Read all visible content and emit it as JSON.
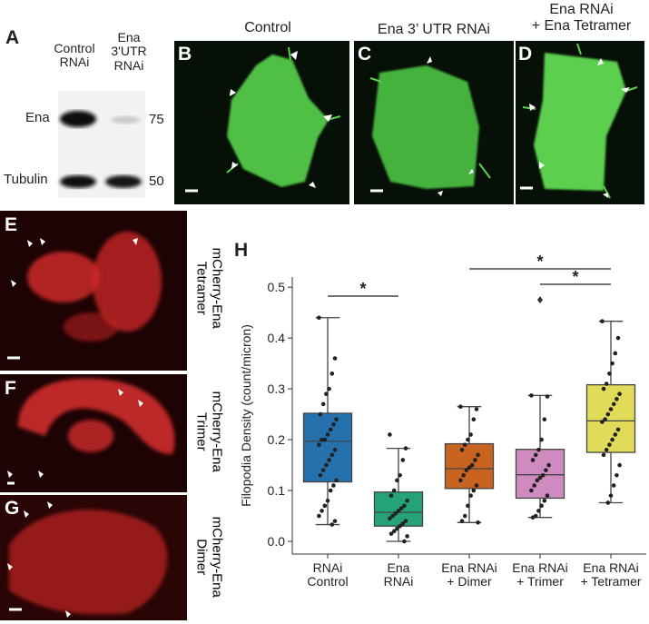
{
  "blot": {
    "label": "A",
    "lanes": [
      "Control\nRNAi",
      "Ena\n3'UTR\nRNAi"
    ],
    "rows": [
      {
        "name": "Ena",
        "kda": 75
      },
      {
        "name": "Tubulin",
        "kda": 50
      }
    ]
  },
  "images": [
    {
      "label": "B",
      "title": "Control"
    },
    {
      "label": "C",
      "title": "Ena 3’ UTR RNAi"
    },
    {
      "label": "D",
      "title": "Ena RNAi\n+ Ena Tetramer"
    },
    {
      "label": "E",
      "caption": "mCherry-Ena\nTetramer"
    },
    {
      "label": "F",
      "caption": "mCherry-Ena\nTrimer"
    },
    {
      "label": "G",
      "caption": "mCherry-Ena\nDimer"
    }
  ],
  "chart_data": {
    "type": "box",
    "label": "H",
    "y_label": "Filopodia Density (count/micron)",
    "categories": [
      "RNAi\nControl",
      "Ena\nRNAi",
      "Ena RNAi\n+ Dimer",
      "Ena RNAi\n+ Trimer",
      "Ena RNAi\n+ Tetramer"
    ],
    "boxes": [
      {
        "color": "#2471ad",
        "whisker_low": 0.033,
        "q1": 0.117,
        "median": 0.197,
        "q3": 0.252,
        "whisker_high": 0.44,
        "outliers": [],
        "points": [
          0.44,
          0.36,
          0.33,
          0.3,
          0.29,
          0.27,
          0.25,
          0.24,
          0.23,
          0.22,
          0.21,
          0.2,
          0.2,
          0.19,
          0.18,
          0.17,
          0.16,
          0.15,
          0.14,
          0.13,
          0.12,
          0.11,
          0.1,
          0.08,
          0.07,
          0.06,
          0.05,
          0.04,
          0.033
        ]
      },
      {
        "color": "#25a27a",
        "whisker_low": 0.0,
        "q1": 0.03,
        "median": 0.057,
        "q3": 0.097,
        "whisker_high": 0.183,
        "outliers": [],
        "points": [
          0.21,
          0.183,
          0.16,
          0.13,
          0.12,
          0.1,
          0.09,
          0.08,
          0.07,
          0.065,
          0.06,
          0.055,
          0.05,
          0.045,
          0.04,
          0.035,
          0.03,
          0.025,
          0.02,
          0.015,
          0.01,
          0.0
        ]
      },
      {
        "color": "#c8641f",
        "whisker_low": 0.037,
        "q1": 0.104,
        "median": 0.143,
        "q3": 0.192,
        "whisker_high": 0.265,
        "outliers": [],
        "points": [
          0.265,
          0.26,
          0.24,
          0.21,
          0.2,
          0.19,
          0.18,
          0.17,
          0.16,
          0.15,
          0.145,
          0.14,
          0.13,
          0.12,
          0.11,
          0.1,
          0.09,
          0.07,
          0.05,
          0.04,
          0.037
        ]
      },
      {
        "color": "#cf8bbf",
        "whisker_low": 0.047,
        "q1": 0.085,
        "median": 0.131,
        "q3": 0.181,
        "whisker_high": 0.287,
        "outliers": [
          0.475
        ],
        "points": [
          0.287,
          0.285,
          0.24,
          0.2,
          0.18,
          0.17,
          0.16,
          0.15,
          0.14,
          0.13,
          0.125,
          0.12,
          0.11,
          0.1,
          0.09,
          0.08,
          0.07,
          0.06,
          0.05,
          0.047
        ]
      },
      {
        "color": "#e0dc5a",
        "whisker_low": 0.076,
        "q1": 0.175,
        "median": 0.237,
        "q3": 0.308,
        "whisker_high": 0.433,
        "outliers": [],
        "points": [
          0.433,
          0.4,
          0.37,
          0.35,
          0.33,
          0.31,
          0.3,
          0.29,
          0.28,
          0.27,
          0.26,
          0.25,
          0.24,
          0.235,
          0.22,
          0.21,
          0.2,
          0.19,
          0.18,
          0.17,
          0.15,
          0.13,
          0.11,
          0.09,
          0.076
        ]
      }
    ],
    "significance": [
      {
        "from": "RNAi\nControl",
        "to": "Ena\nRNAi",
        "label": "*"
      },
      {
        "from": "Ena RNAi\n+ Dimer",
        "to": "Ena RNAi\n+ Tetramer",
        "label": "*"
      },
      {
        "from": "Ena RNAi\n+ Trimer",
        "to": "Ena RNAi\n+ Tetramer",
        "label": "*"
      }
    ],
    "ylim": [
      -0.025,
      0.52
    ],
    "yticks": [
      {
        "value": 0,
        "label": "0.0"
      },
      0.1,
      0.2,
      0.3,
      0.4,
      0.5
    ]
  }
}
